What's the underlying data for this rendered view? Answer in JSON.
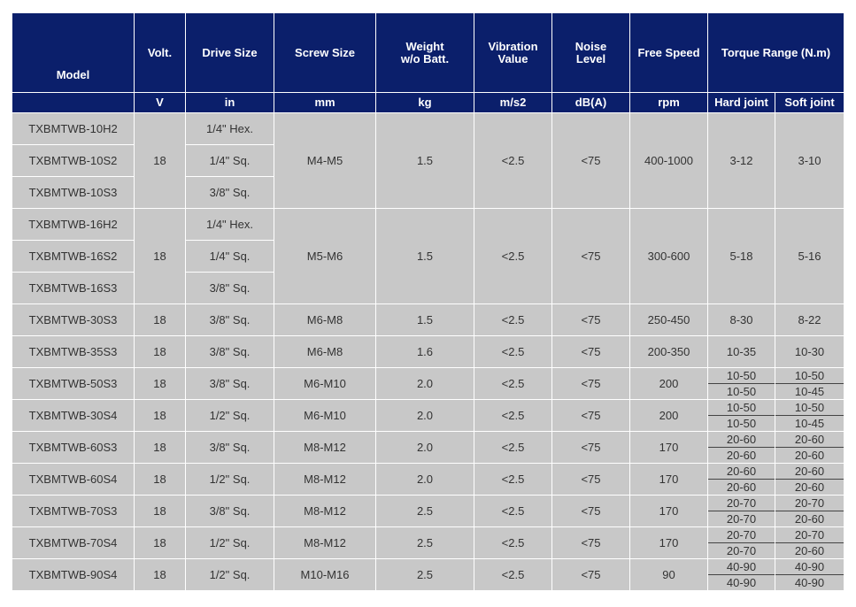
{
  "headers": {
    "model": "Model",
    "volt": "Volt.",
    "drive_size": "Drive Size",
    "screw_size": "Screw Size",
    "weight_line1": "Weight",
    "weight_line2": "w/o Batt.",
    "vibration_line1": "Vibration",
    "vibration_line2": "Value",
    "noise_line1": "Noise",
    "noise_line2": "Level",
    "free_speed": "Free Speed",
    "torque_range": "Torque Range (N.m)"
  },
  "units": {
    "volt": "V",
    "drive_size": "in",
    "screw_size": "mm",
    "weight": "kg",
    "vibration": "m/s2",
    "noise": "dB(A)",
    "free_speed": "rpm",
    "hard_joint": "Hard joint",
    "soft_joint": "Soft joint"
  },
  "groups": [
    {
      "models": [
        "TXBMTWB-10H2",
        "TXBMTWB-10S2",
        "TXBMTWB-10S3"
      ],
      "drives": [
        "1/4\" Hex.",
        "1/4\" Sq.",
        "3/8\" Sq."
      ],
      "volt": "18",
      "screw": "M4-M5",
      "weight": "1.5",
      "vibration": "<2.5",
      "noise": "<75",
      "speed": "400-1000",
      "hard": "3-12",
      "soft": "3-10"
    },
    {
      "models": [
        "TXBMTWB-16H2",
        "TXBMTWB-16S2",
        "TXBMTWB-16S3"
      ],
      "drives": [
        "1/4\" Hex.",
        "1/4\" Sq.",
        "3/8\" Sq."
      ],
      "volt": "18",
      "screw": "M5-M6",
      "weight": "1.5",
      "vibration": "<2.5",
      "noise": "<75",
      "speed": "300-600",
      "hard": "5-18",
      "soft": "5-16"
    }
  ],
  "single_rows": [
    {
      "model": "TXBMTWB-30S3",
      "volt": "18",
      "drive": "3/8\" Sq.",
      "screw": "M6-M8",
      "weight": "1.5",
      "vibration": "<2.5",
      "noise": "<75",
      "speed": "250-450",
      "hard": "8-30",
      "soft": "8-22"
    },
    {
      "model": "TXBMTWB-35S3",
      "volt": "18",
      "drive": "3/8\" Sq.",
      "screw": "M6-M8",
      "weight": "1.6",
      "vibration": "<2.5",
      "noise": "<75",
      "speed": "200-350",
      "hard": "10-35",
      "soft": "10-30"
    }
  ],
  "split_rows": [
    {
      "model": "TXBMTWB-50S3",
      "volt": "18",
      "drive": "3/8\" Sq.",
      "screw": "M6-M10",
      "weight": "2.0",
      "vibration": "<2.5",
      "noise": "<75",
      "speed": "200",
      "hard": [
        "10-50",
        "10-50"
      ],
      "soft": [
        "10-50",
        "10-45"
      ]
    },
    {
      "model": "TXBMTWB-30S4",
      "volt": "18",
      "drive": "1/2\" Sq.",
      "screw": "M6-M10",
      "weight": "2.0",
      "vibration": "<2.5",
      "noise": "<75",
      "speed": "200",
      "hard": [
        "10-50",
        "10-50"
      ],
      "soft": [
        "10-50",
        "10-45"
      ]
    },
    {
      "model": "TXBMTWB-60S3",
      "volt": "18",
      "drive": "3/8\" Sq.",
      "screw": "M8-M12",
      "weight": "2.0",
      "vibration": "<2.5",
      "noise": "<75",
      "speed": "170",
      "hard": [
        "20-60",
        "20-60"
      ],
      "soft": [
        "20-60",
        "20-60"
      ]
    },
    {
      "model": "TXBMTWB-60S4",
      "volt": "18",
      "drive": "1/2\" Sq.",
      "screw": "M8-M12",
      "weight": "2.0",
      "vibration": "<2.5",
      "noise": "<75",
      "speed": "170",
      "hard": [
        "20-60",
        "20-60"
      ],
      "soft": [
        "20-60",
        "20-60"
      ]
    },
    {
      "model": "TXBMTWB-70S3",
      "volt": "18",
      "drive": "3/8\" Sq.",
      "screw": "M8-M12",
      "weight": "2.5",
      "vibration": "<2.5",
      "noise": "<75",
      "speed": "170",
      "hard": [
        "20-70",
        "20-70"
      ],
      "soft": [
        "20-70",
        "20-60"
      ]
    },
    {
      "model": "TXBMTWB-70S4",
      "volt": "18",
      "drive": "1/2\" Sq.",
      "screw": "M8-M12",
      "weight": "2.5",
      "vibration": "<2.5",
      "noise": "<75",
      "speed": "170",
      "hard": [
        "20-70",
        "20-70"
      ],
      "soft": [
        "20-70",
        "20-60"
      ]
    },
    {
      "model": "TXBMTWB-90S4",
      "volt": "18",
      "drive": "1/2\" Sq.",
      "screw": "M10-M16",
      "weight": "2.5",
      "vibration": "<2.5",
      "noise": "<75",
      "speed": "90",
      "hard": [
        "40-90",
        "40-90"
      ],
      "soft": [
        "40-90",
        "40-90"
      ]
    }
  ]
}
